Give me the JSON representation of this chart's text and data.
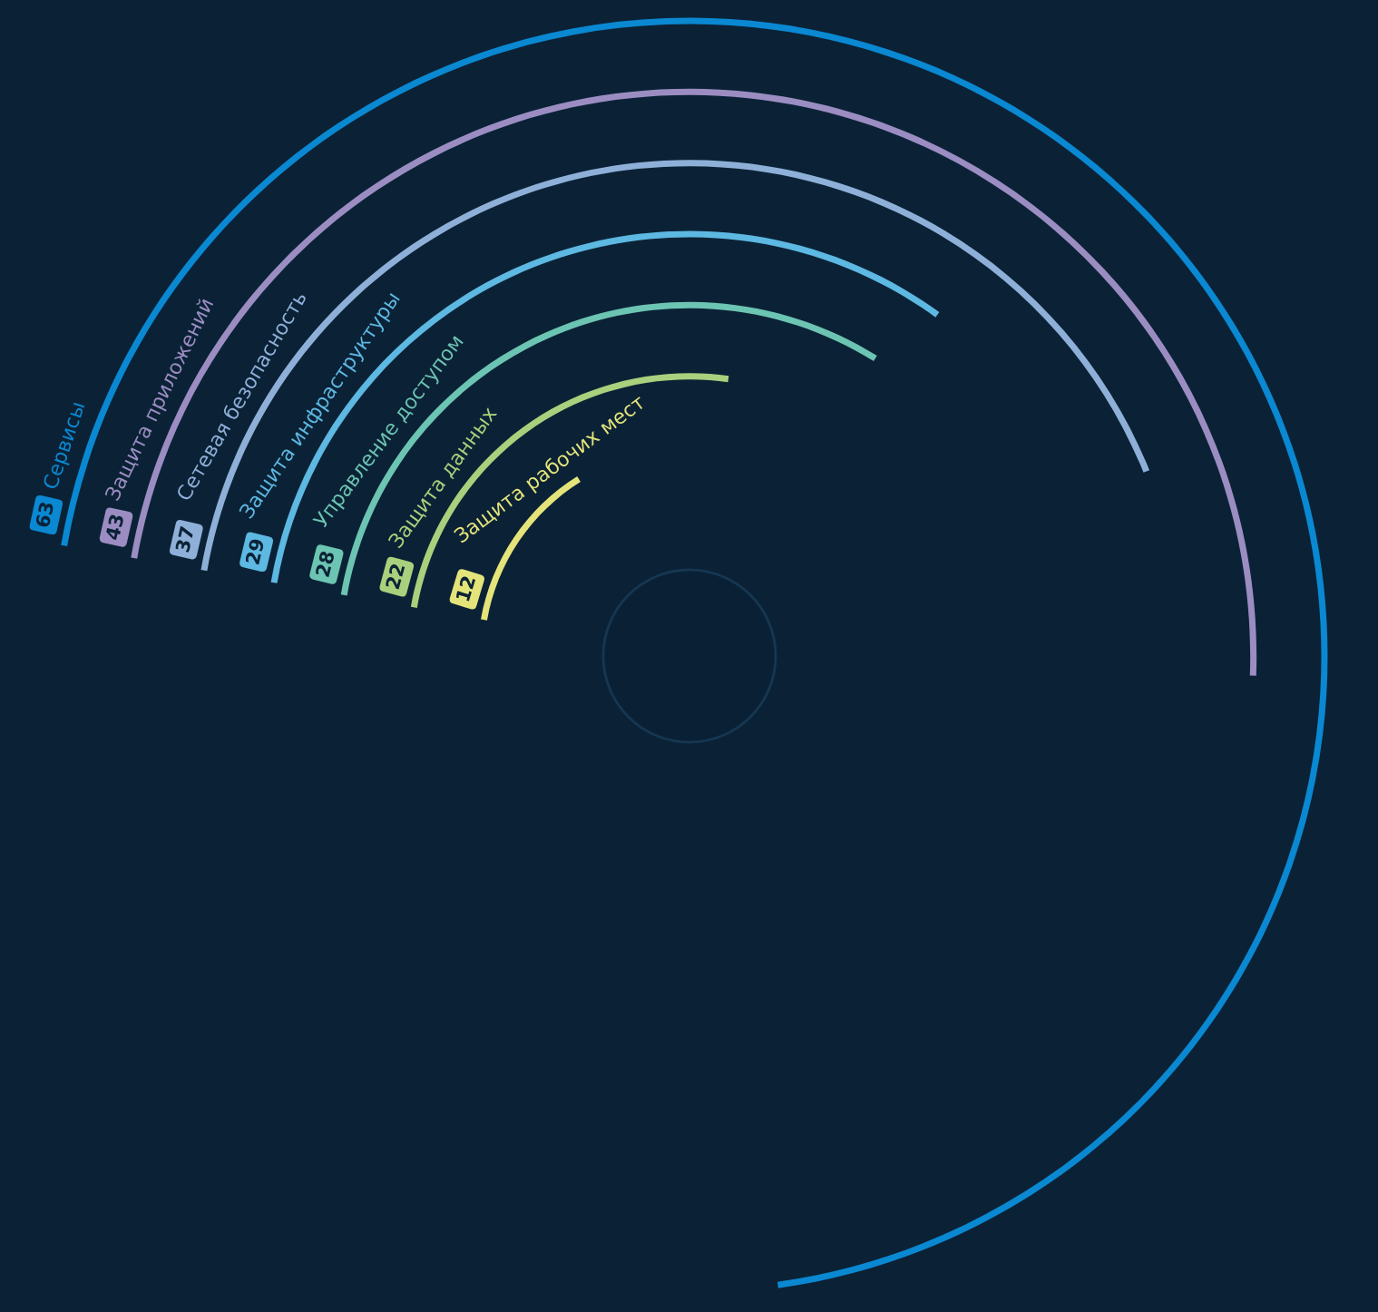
{
  "chart_data": {
    "type": "other",
    "categories": [
      "Защита рабочих мест",
      "Защита данных",
      "Управление доступом",
      "Защита инфраструктуры",
      "Сетевая безопасность",
      "Защита приложений",
      "Сервисы"
    ],
    "values": [
      12,
      22,
      28,
      29,
      37,
      43,
      63
    ],
    "value_labels": [
      "12",
      "22",
      "28",
      "29",
      "37",
      "43",
      "63"
    ],
    "colors": [
      "#e4e47a",
      "#a9d07c",
      "#6cc4b2",
      "#5db8e2",
      "#8eb0d8",
      "#9b8dc2",
      "#0a88d2"
    ]
  }
}
